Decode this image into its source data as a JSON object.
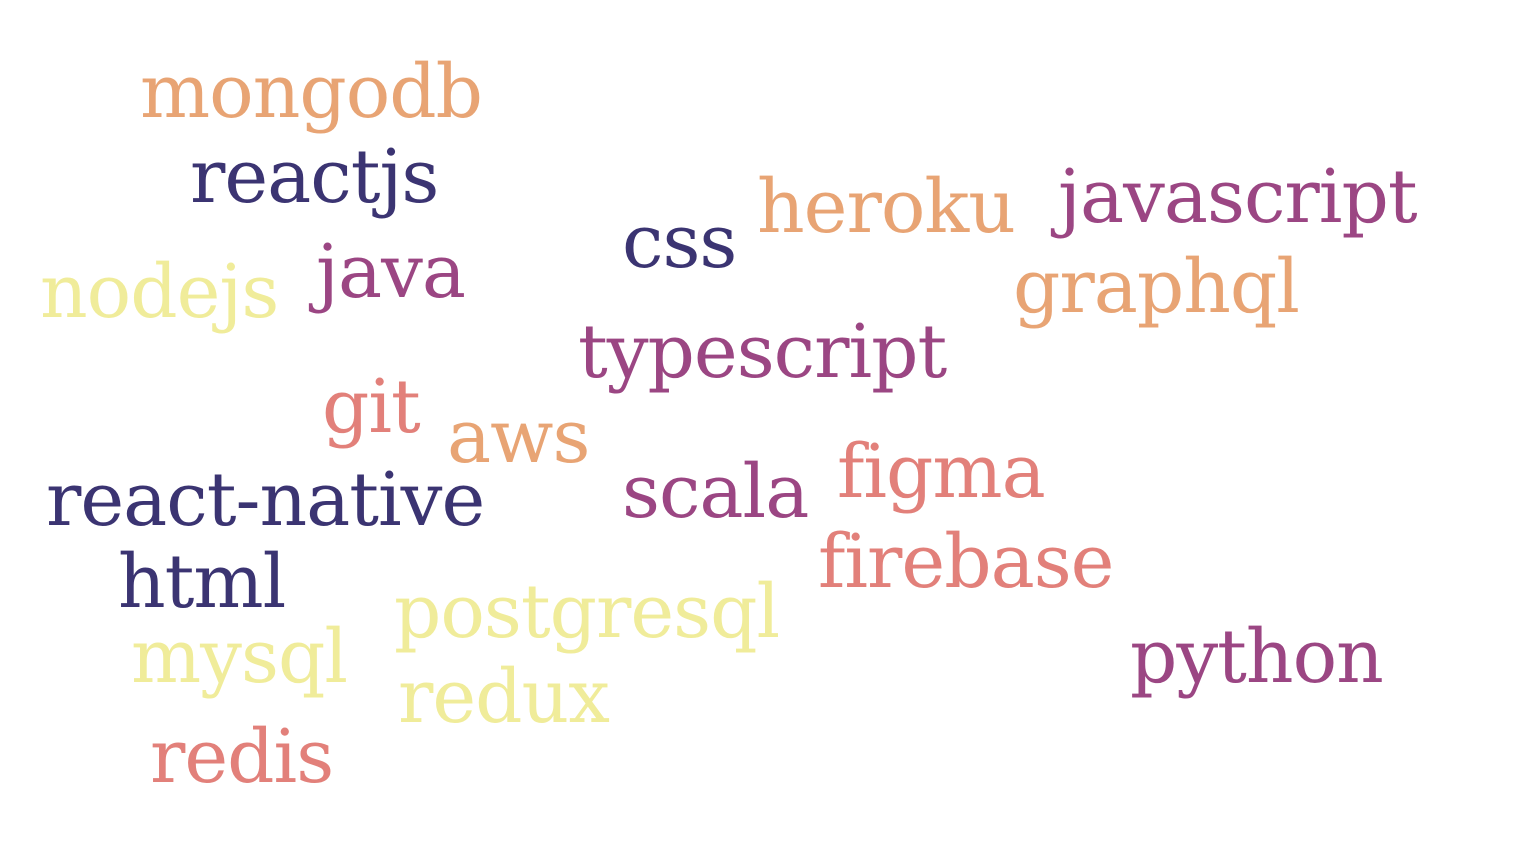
{
  "words": {
    "mongodb": "mongodb",
    "reactjs": "reactjs",
    "heroku": "heroku",
    "javascript": "javascript",
    "css": "css",
    "nodejs": "nodejs",
    "java": "java",
    "graphql": "graphql",
    "typescript": "typescript",
    "git": "git",
    "aws": "aws",
    "react_native": "react-native",
    "scala": "scala",
    "figma": "figma",
    "html": "html",
    "firebase": "firebase",
    "postgresql": "postgresql",
    "mysql": "mysql",
    "python": "python",
    "redux": "redux",
    "redis": "redis"
  },
  "colors": {
    "navy": "#3b3472",
    "plum": "#9b4683",
    "orange": "#e8a474",
    "salmon": "#e2807a",
    "yellow": "#f0ec9a",
    "background": "#ffffff"
  }
}
